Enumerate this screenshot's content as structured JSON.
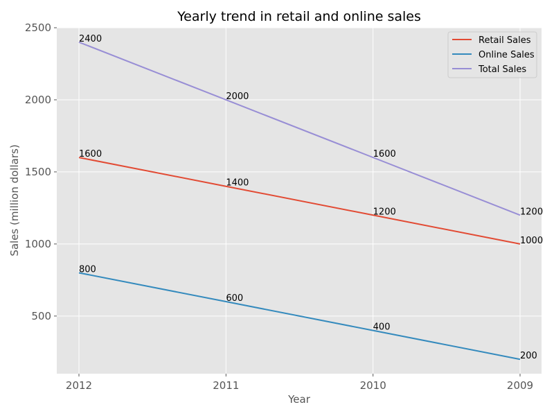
{
  "chart_data": {
    "type": "line",
    "title": "Yearly trend in retail and online sales",
    "xlabel": "Year",
    "ylabel": "Sales (million dollars)",
    "categories": [
      "2012",
      "2011",
      "2010",
      "2009"
    ],
    "series": [
      {
        "name": "Retail Sales",
        "color": "#E24A33",
        "values": [
          1600,
          1400,
          1200,
          1000
        ]
      },
      {
        "name": "Online Sales",
        "color": "#348ABD",
        "values": [
          800,
          600,
          400,
          200
        ]
      },
      {
        "name": "Total Sales",
        "color": "#988ED5",
        "values": [
          2400,
          2000,
          1600,
          1200
        ]
      }
    ],
    "ylim": [
      100,
      2500
    ],
    "yticks": [
      500,
      1000,
      1500,
      2000,
      2500
    ],
    "grid": true,
    "legend_position": "top-right",
    "background": "#E5E5E5"
  }
}
